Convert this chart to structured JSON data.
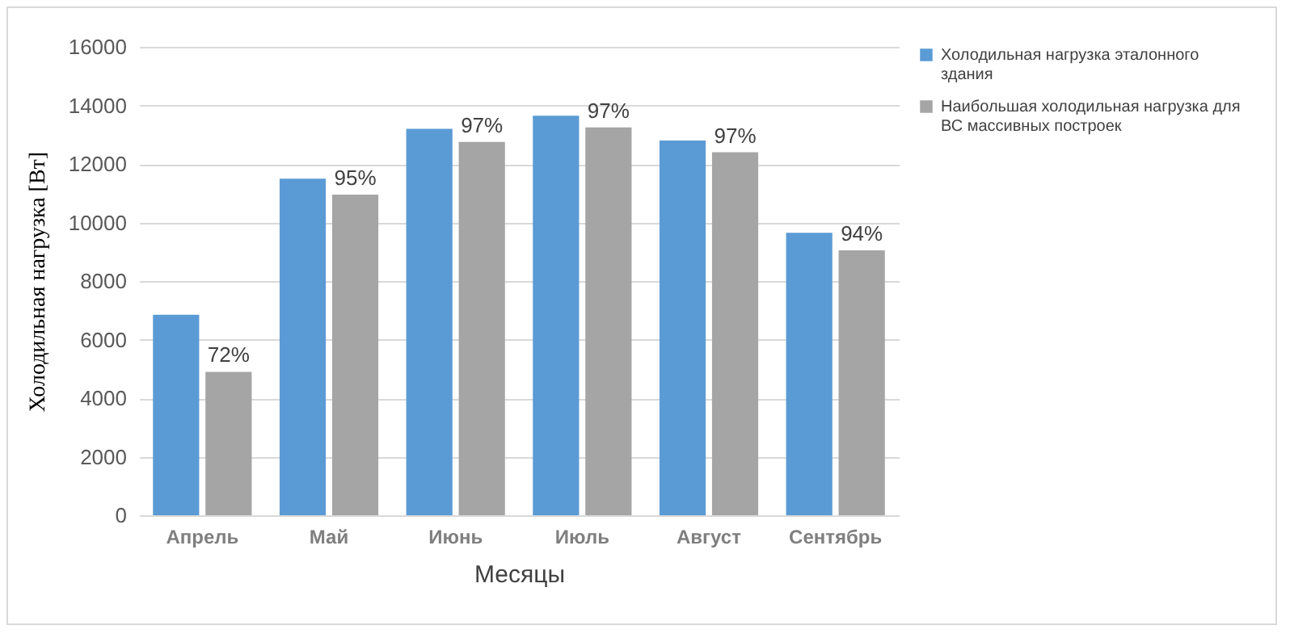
{
  "chart_data": {
    "type": "bar",
    "xlabel": "Месяцы",
    "ylabel": "Холодильная нагрузка [Вт]",
    "categories": [
      "Апрель",
      "Май",
      "Июнь",
      "Июль",
      "Август",
      "Сентябрь"
    ],
    "series": [
      {
        "name": "Холодильная нагрузка эталонного здания",
        "color": "#5b9bd5",
        "values": [
          6850,
          11500,
          13200,
          13650,
          12800,
          9650
        ]
      },
      {
        "name": "Наибольшая холодильная нагрузка для ВС массивных построек",
        "color": "#a5a5a5",
        "values": [
          4900,
          10950,
          12750,
          13250,
          12400,
          9050
        ]
      }
    ],
    "annotations": [
      {
        "text": "72%",
        "x": "Апрель",
        "y": 4900
      },
      {
        "text": "95%",
        "x": "Май",
        "y": 10950
      },
      {
        "text": "97%",
        "x": "Июнь",
        "y": 12750
      },
      {
        "text": "97%",
        "x": "Июль",
        "y": 13250
      },
      {
        "text": "97%",
        "x": "Август",
        "y": 12400
      },
      {
        "text": "94%",
        "x": "Сентябрь",
        "y": 9050
      }
    ],
    "ylim": [
      0,
      16000
    ],
    "yticks": [
      0,
      2000,
      4000,
      6000,
      8000,
      10000,
      12000,
      14000,
      16000
    ],
    "grid": "y",
    "legend": "right"
  }
}
